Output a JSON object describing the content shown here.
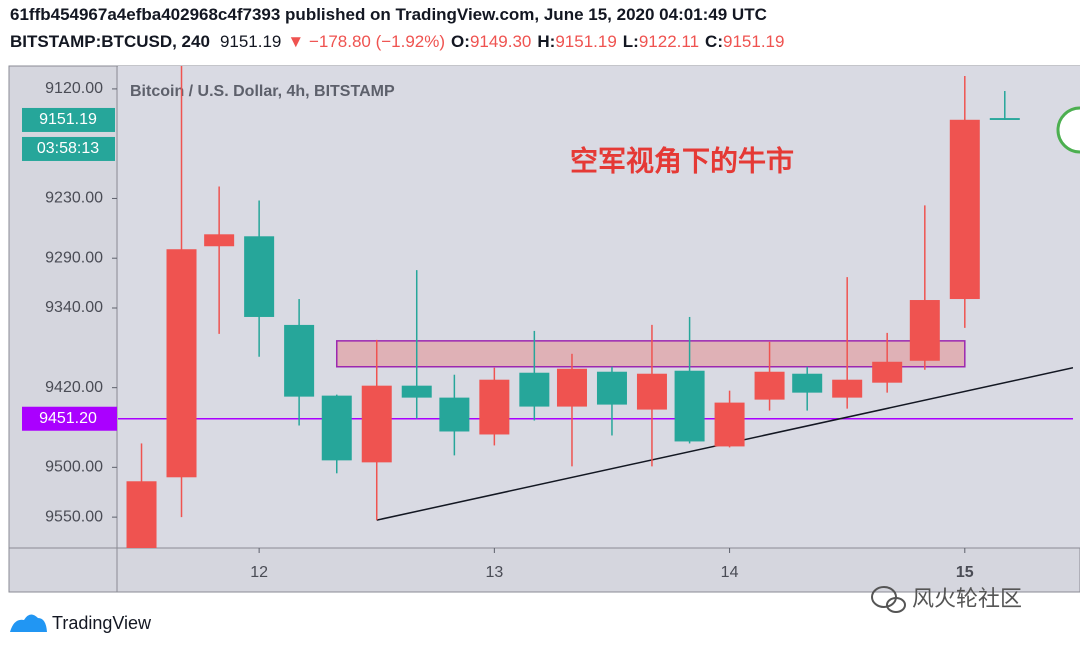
{
  "header": {
    "line1": "61ffb454967a4efba402968c4f7393 published on TradingView.com, June 15, 2020 04:01:49 UTC",
    "symbol": "BITSTAMP:BTCUSD, 240",
    "price": "9151.19",
    "change": "▼ −178.80 (−1.92%)",
    "o_label": "O:",
    "o_value": "9149.30",
    "h_label": "H:",
    "h_value": "9151.19",
    "l_label": "L:",
    "l_value": "9122.11",
    "c_label": "C:",
    "c_value": "9151.19"
  },
  "chart_data": {
    "type": "candlestick",
    "title": "Bitcoin / U.S. Dollar, 4h, BITSTAMP",
    "annotation": "空军视角下的牛市",
    "inverted": true,
    "up_color": "#26a69a",
    "down_color": "#ef5350",
    "xlim": [
      11.4,
      15.46
    ],
    "ylim": [
      9097,
      9581
    ],
    "xticks": [
      12,
      13,
      14,
      15
    ],
    "yticks": [
      {
        "value": 9120,
        "label": "9120.00"
      },
      {
        "value": 9230,
        "label": "9230.00"
      },
      {
        "value": 9290,
        "label": "9290.00"
      },
      {
        "value": 9340,
        "label": "9340.00"
      },
      {
        "value": 9420,
        "label": "9420.00"
      },
      {
        "value": 9500,
        "label": "9500.00"
      },
      {
        "value": 9550,
        "label": "9550.00"
      }
    ],
    "candles": [
      {
        "x": 11.5,
        "open": 9581,
        "high": 9581,
        "low": 9476,
        "close": 9514
      },
      {
        "x": 11.67,
        "open": 9510,
        "high": 9550,
        "low": 9097,
        "close": 9281
      },
      {
        "x": 11.83,
        "open": 9278,
        "high": 9366,
        "low": 9218,
        "close": 9266
      },
      {
        "x": 12,
        "open": 9268,
        "high": 9389,
        "low": 9232,
        "close": 9349
      },
      {
        "x": 12.17,
        "open": 9357,
        "high": 9458,
        "low": 9331,
        "close": 9429
      },
      {
        "x": 12.33,
        "open": 9428,
        "high": 9506,
        "low": 9427,
        "close": 9493
      },
      {
        "x": 12.5,
        "open": 9495,
        "high": 9553,
        "low": 9372,
        "close": 9418
      },
      {
        "x": 12.67,
        "open": 9418,
        "high": 9451,
        "low": 9302,
        "close": 9430
      },
      {
        "x": 12.83,
        "open": 9430,
        "high": 9488,
        "low": 9407,
        "close": 9464
      },
      {
        "x": 13,
        "open": 9467,
        "high": 9478,
        "low": 9400,
        "close": 9412
      },
      {
        "x": 13.17,
        "open": 9405,
        "high": 9453,
        "low": 9363,
        "close": 9439
      },
      {
        "x": 13.33,
        "open": 9439,
        "high": 9499,
        "low": 9386,
        "close": 9401
      },
      {
        "x": 13.5,
        "open": 9404,
        "high": 9468,
        "low": 9399,
        "close": 9437
      },
      {
        "x": 13.67,
        "open": 9442,
        "high": 9499,
        "low": 9357,
        "close": 9406
      },
      {
        "x": 13.83,
        "open": 9403,
        "high": 9476,
        "low": 9349,
        "close": 9474
      },
      {
        "x": 14,
        "open": 9479,
        "high": 9480,
        "low": 9423,
        "close": 9435
      },
      {
        "x": 14.17,
        "open": 9432,
        "high": 9443,
        "low": 9374,
        "close": 9404
      },
      {
        "x": 14.33,
        "open": 9406,
        "high": 9443,
        "low": 9399,
        "close": 9425
      },
      {
        "x": 14.5,
        "open": 9430,
        "high": 9441,
        "low": 9309,
        "close": 9412
      },
      {
        "x": 14.67,
        "open": 9415,
        "high": 9425,
        "low": 9365,
        "close": 9394
      },
      {
        "x": 14.83,
        "open": 9393,
        "high": 9402,
        "low": 9237,
        "close": 9332
      },
      {
        "x": 15,
        "open": 9331,
        "high": 9360,
        "low": 9107,
        "close": 9151
      },
      {
        "x": 15.17,
        "open": 9149.3,
        "high": 9151.19,
        "low": 9122.11,
        "close": 9151.19
      }
    ],
    "last_price_label": "9151.19",
    "countdown": "03:58:13",
    "hline": {
      "value": 9451.2,
      "label": "9451.20",
      "color": "#aa00ff"
    },
    "rectangle": {
      "x": [
        12.33,
        15
      ],
      "y": [
        9373,
        9399
      ]
    },
    "trendline": {
      "x": [
        12.5,
        15.46
      ],
      "y": [
        9553,
        9400
      ]
    }
  },
  "footer": {
    "logo": "TradingView",
    "watermark": "风火轮社区"
  }
}
